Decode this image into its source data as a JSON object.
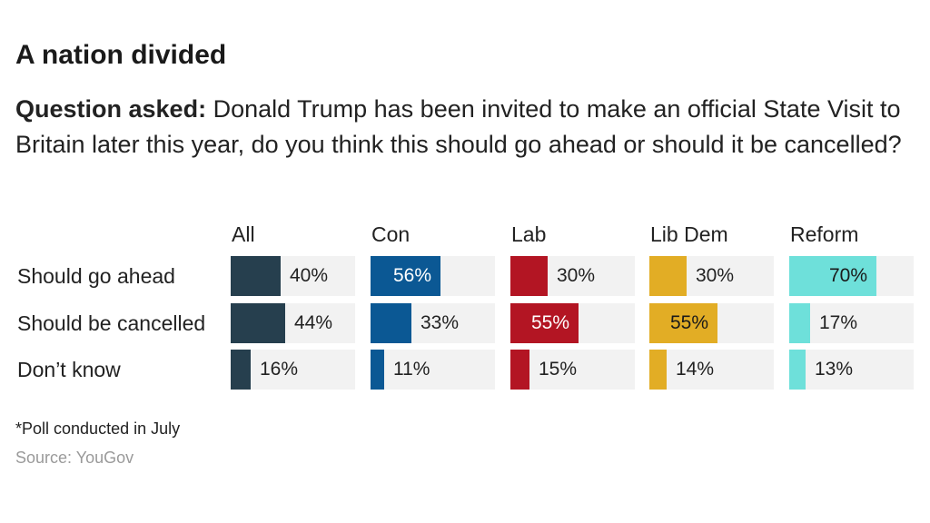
{
  "title": "A nation divided",
  "question_label": "Question asked:",
  "question_text": " Donald Trump has been invited to make an official State Visit to Britain later this year, do you think this should go ahead or should it be cancelled?",
  "note": "*Poll conducted in July",
  "source": "Source: YouGov",
  "chart_data": {
    "type": "bar",
    "orientation": "horizontal",
    "categories": [
      "Should go ahead",
      "Should be cancelled",
      "Don’t know"
    ],
    "xlim": [
      0,
      100
    ],
    "value_format": "percent",
    "series": [
      {
        "name": "All",
        "color": "#263f4e",
        "values": [
          40,
          44,
          16
        ]
      },
      {
        "name": "Con",
        "color": "#0b5894",
        "values": [
          56,
          33,
          11
        ]
      },
      {
        "name": "Lab",
        "color": "#b31523",
        "values": [
          30,
          55,
          15
        ]
      },
      {
        "name": "Lib Dem",
        "color": "#e2ad25",
        "values": [
          30,
          55,
          14
        ]
      },
      {
        "name": "Reform",
        "color": "#6ee0da",
        "values": [
          70,
          17,
          13
        ]
      }
    ]
  }
}
